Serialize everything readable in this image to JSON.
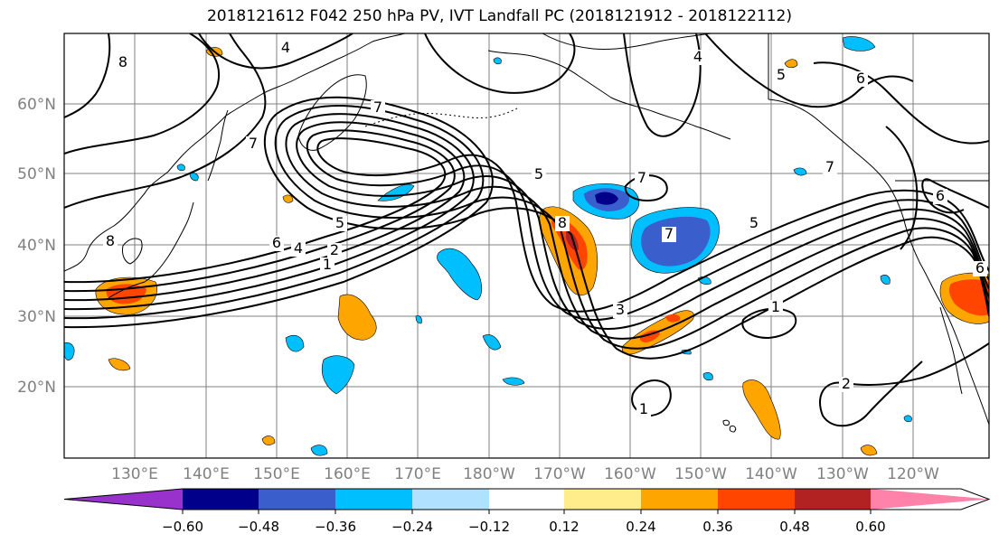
{
  "title": "2018121612 F042 250 hPa PV, IVT Landfall PC (2018121912 - 2018122112)",
  "map": {
    "lat_labels": [
      "60°N",
      "50°N",
      "40°N",
      "30°N",
      "20°N"
    ],
    "lon_labels": [
      "130°E",
      "140°E",
      "150°E",
      "160°E",
      "170°E",
      "180°W",
      "170°W",
      "160°W",
      "150°W",
      "140°W",
      "130°W",
      "120°W"
    ],
    "contour_labels": [
      "8",
      "4",
      "8",
      "5",
      "6",
      "7",
      "7",
      "5",
      "7",
      "6",
      "7",
      "5",
      "4",
      "2",
      "1",
      "8",
      "7",
      "5",
      "3",
      "1",
      "1",
      "2",
      "6",
      "6",
      "4"
    ],
    "colors": {
      "shading": [
        "#9932cc",
        "#00008b",
        "#3a5fcd",
        "#00bfff",
        "#b0e2ff",
        "#ffffff",
        "#ffec8b",
        "#ffa500",
        "#ff4500",
        "#b22222",
        "#ff82ab"
      ],
      "land": "#000000",
      "grid": "#808080",
      "tick_label": "#808080"
    }
  },
  "colorbar": {
    "tick_labels": [
      "−0.60",
      "−0.48",
      "−0.36",
      "−0.24",
      "−0.12",
      "0.12",
      "0.24",
      "0.36",
      "0.48",
      "0.60"
    ]
  }
}
